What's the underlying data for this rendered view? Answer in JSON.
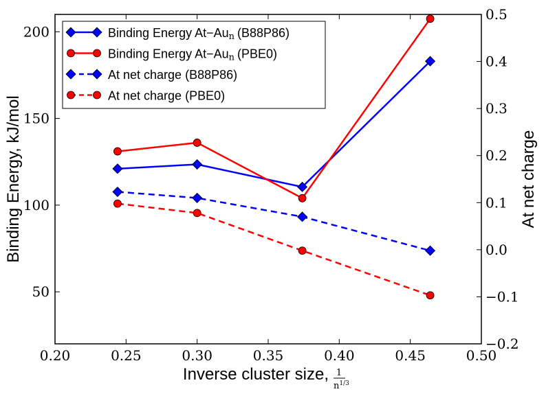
{
  "chart_data": {
    "type": "line",
    "title": "",
    "xlabel": "Inverse cluster size,",
    "xlabel_fraction": {
      "numerator": "1",
      "denominator": "n",
      "exponent": "1/3"
    },
    "ylabel": "Binding Energy, kJ/mol",
    "y2label": "At net charge",
    "xlim": [
      0.2,
      0.5
    ],
    "ylim": [
      20,
      210
    ],
    "y2lim": [
      -0.2,
      0.5
    ],
    "xticks": [
      "0.20",
      "0.25",
      "0.30",
      "0.35",
      "0.40",
      "0.45",
      "0.50"
    ],
    "yticks": [
      "50",
      "100",
      "150",
      "200"
    ],
    "y2ticks": [
      "−0.2",
      "−0.1",
      "0.0",
      "0.1",
      "0.2",
      "0.3",
      "0.4",
      "0.5"
    ],
    "x": [
      0.244,
      0.3,
      0.374,
      0.464
    ],
    "series": [
      {
        "name": "Binding Energy At−Au",
        "sub": "n",
        "suffix": "(B88P86)",
        "axis": "left",
        "color": "#0000ff",
        "marker": "diamond",
        "dash": "solid",
        "values": [
          121,
          123.5,
          110.5,
          183
        ]
      },
      {
        "name": "Binding Energy At−Au",
        "sub": "n",
        "suffix": "(PBE0)",
        "axis": "left",
        "color": "#ff0000",
        "marker": "circle",
        "dash": "solid",
        "values": [
          131,
          136,
          104,
          207.5
        ]
      },
      {
        "name": "At net charge",
        "sub": "",
        "suffix": "(B88P86)",
        "axis": "right",
        "color": "#0000ff",
        "marker": "diamond",
        "dash": "dashed",
        "values": [
          0.123,
          0.11,
          0.07,
          -0.002
        ]
      },
      {
        "name": "At net charge",
        "sub": "",
        "suffix": "(PBE0)",
        "axis": "right",
        "color": "#ff0000",
        "marker": "circle",
        "dash": "dashed",
        "values": [
          0.098,
          0.078,
          -0.002,
          -0.097
        ]
      }
    ],
    "legend_position": "top-left",
    "grid": false
  }
}
